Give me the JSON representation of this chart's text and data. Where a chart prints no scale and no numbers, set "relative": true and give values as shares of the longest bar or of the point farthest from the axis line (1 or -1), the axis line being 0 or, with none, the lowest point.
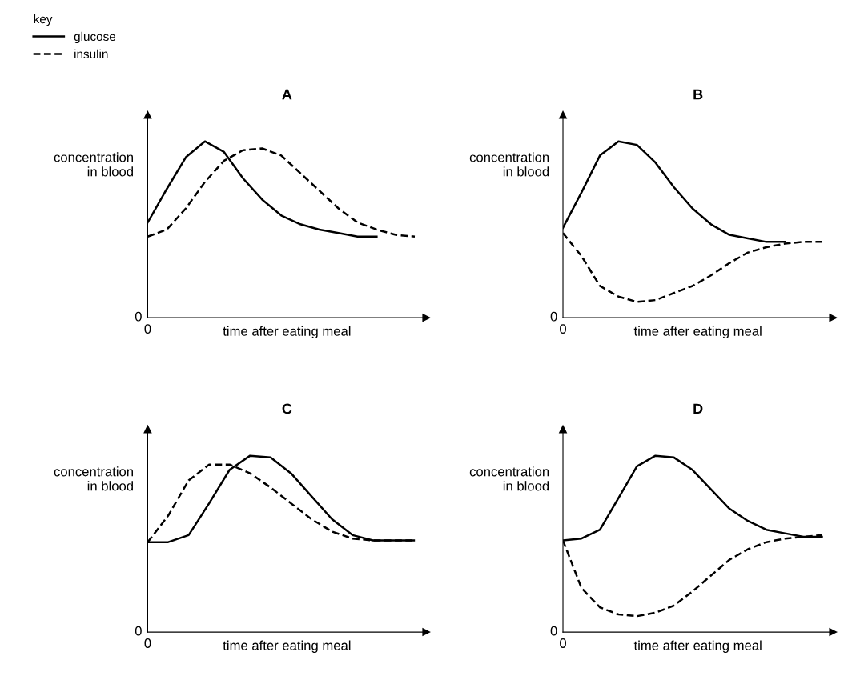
{
  "chart_data": [
    {
      "type": "line",
      "title": "A",
      "xlabel": "time after eating meal",
      "ylabel": "concentration\nin blood",
      "legend_title": "key",
      "legend": "top left",
      "relative": true,
      "annotations": [
        "0",
        "0"
      ],
      "categories": [
        null,
        null,
        null,
        null,
        null,
        null,
        null,
        null,
        null,
        null,
        null,
        null,
        null,
        null,
        null
      ],
      "series": [
        {
          "name": "glucose",
          "color": "#000000",
          "line_style": "solid",
          "values": [
            0.54,
            0.73,
            0.91,
            1,
            0.94,
            0.79,
            0.67,
            0.58,
            0.53,
            0.5,
            0.48,
            0.46,
            0.46,
            null,
            null
          ]
        },
        {
          "name": "insulin",
          "color": "#000000",
          "line_style": "dashed",
          "values": [
            0.46,
            0.5,
            0.62,
            0.77,
            0.89,
            0.95,
            0.96,
            0.92,
            0.82,
            0.72,
            0.62,
            0.54,
            0.5,
            0.47,
            0.46
          ]
        }
      ]
    },
    {
      "type": "line",
      "title": "B",
      "xlabel": "time after eating meal",
      "ylabel": "concentration\nin blood",
      "relative": true,
      "annotations": [
        "0",
        "0"
      ],
      "categories": [
        null,
        null,
        null,
        null,
        null,
        null,
        null,
        null,
        null,
        null,
        null,
        null,
        null,
        null,
        null
      ],
      "series": [
        {
          "color": "#000000",
          "line_style": "solid",
          "values": [
            0.51,
            0.71,
            0.92,
            1,
            0.98,
            0.88,
            0.74,
            0.62,
            0.53,
            0.47,
            0.45,
            0.43,
            0.43,
            null,
            null
          ]
        },
        {
          "color": "#000000",
          "line_style": "dashed",
          "values": [
            0.48,
            0.35,
            0.18,
            0.12,
            0.09,
            0.1,
            0.14,
            0.18,
            0.24,
            0.31,
            0.37,
            0.4,
            0.42,
            0.43,
            0.43
          ]
        }
      ]
    },
    {
      "type": "line",
      "title": "C",
      "xlabel": "time after eating meal",
      "ylabel": "concentration\nin blood",
      "relative": true,
      "annotations": [
        "0",
        "0"
      ],
      "categories": [
        null,
        null,
        null,
        null,
        null,
        null,
        null,
        null,
        null,
        null,
        null,
        null,
        null,
        null
      ],
      "series": [
        {
          "color": "#000000",
          "line_style": "solid",
          "values": [
            0.51,
            0.51,
            0.55,
            0.73,
            0.92,
            1,
            0.99,
            0.9,
            0.77,
            0.64,
            0.55,
            0.52,
            0.52,
            0.52
          ]
        },
        {
          "color": "#000000",
          "line_style": "dashed",
          "values": [
            0.51,
            0.66,
            0.86,
            0.95,
            0.95,
            0.9,
            0.82,
            0.73,
            0.64,
            0.57,
            0.53,
            0.52,
            0.52,
            0.52
          ]
        }
      ]
    },
    {
      "type": "line",
      "title": "D",
      "xlabel": "time after eating meal",
      "ylabel": "concentration\nin blood",
      "relative": true,
      "annotations": [
        "0",
        "0"
      ],
      "categories": [
        null,
        null,
        null,
        null,
        null,
        null,
        null,
        null,
        null,
        null,
        null,
        null,
        null,
        null,
        null
      ],
      "series": [
        {
          "color": "#000000",
          "line_style": "solid",
          "values": [
            0.52,
            0.53,
            0.58,
            0.76,
            0.94,
            1,
            0.99,
            0.92,
            0.81,
            0.7,
            0.63,
            0.58,
            0.56,
            0.54,
            0.54
          ]
        },
        {
          "color": "#000000",
          "line_style": "dashed",
          "values": [
            0.52,
            0.25,
            0.14,
            0.1,
            0.09,
            0.11,
            0.15,
            0.23,
            0.32,
            0.41,
            0.47,
            0.51,
            0.53,
            0.54,
            0.55
          ]
        }
      ]
    }
  ]
}
